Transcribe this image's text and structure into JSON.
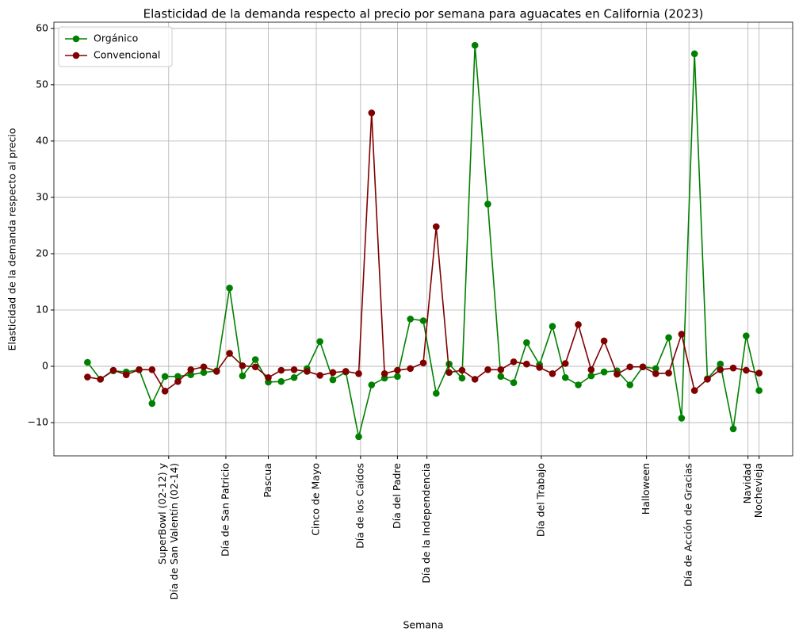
{
  "chart_data": {
    "type": "line",
    "title": "Elasticidad de la demanda respecto al precio por semana para aguacates en California (2023)",
    "xlabel": "Semana",
    "ylabel": "Elasticidad de la demanda respecto al precio",
    "x": [
      1,
      8,
      15,
      22,
      29,
      36,
      43,
      50,
      57,
      64,
      71,
      78,
      85,
      92,
      99,
      106,
      113,
      120,
      127,
      134,
      141,
      148,
      155,
      162,
      169,
      176,
      183,
      190,
      197,
      204,
      211,
      218,
      225,
      232,
      239,
      246,
      253,
      260,
      267,
      274,
      281,
      288,
      295,
      302,
      309,
      316,
      323,
      330,
      337,
      344,
      351,
      358,
      365
    ],
    "series": [
      {
        "name": "Orgánico",
        "color": "#008000",
        "values": [
          0.7,
          -2.3,
          -0.8,
          -1.0,
          -0.6,
          -6.6,
          -1.8,
          -1.8,
          -1.5,
          -1.1,
          -0.8,
          13.9,
          -1.7,
          1.2,
          -2.8,
          -2.7,
          -2.0,
          -0.4,
          4.4,
          -2.4,
          -1.0,
          -12.5,
          -3.3,
          -2.1,
          -1.8,
          8.4,
          8.1,
          -4.8,
          0.4,
          -2.1,
          57.0,
          28.8,
          -1.8,
          -2.9,
          4.2,
          0.3,
          7.1,
          -2.0,
          -3.3,
          -1.7,
          -1.0,
          -0.8,
          -3.3,
          -0.1,
          -0.4,
          5.1,
          -9.2,
          55.5,
          -2.2,
          0.4,
          -11.1,
          5.4,
          -4.3
        ]
      },
      {
        "name": "Convencional",
        "color": "#800000",
        "values": [
          -1.9,
          -2.3,
          -0.7,
          -1.5,
          -0.6,
          -0.6,
          -4.4,
          -2.7,
          -0.6,
          -0.1,
          -0.9,
          2.3,
          0.1,
          -0.1,
          -2.0,
          -0.7,
          -0.6,
          -0.9,
          -1.6,
          -1.1,
          -0.9,
          -1.3,
          45.0,
          -1.3,
          -0.7,
          -0.4,
          0.6,
          24.8,
          -1.1,
          -0.7,
          -2.3,
          -0.6,
          -0.6,
          0.8,
          0.4,
          -0.2,
          -1.3,
          0.5,
          7.4,
          -0.6,
          4.5,
          -1.4,
          -0.1,
          -0.1,
          -1.3,
          -1.2,
          5.7,
          -4.3,
          -2.3,
          -0.6,
          -0.3,
          -0.7,
          -1.2
        ]
      }
    ],
    "xlim": [
      -17.2,
      383.2
    ],
    "ylim": [
      -15.9,
      61.1
    ],
    "xticks": [
      {
        "value": 45,
        "label": "SuperBowl (02-12) y\nDía de San Valentín (02-14)"
      },
      {
        "value": 76,
        "label": "Día de San Patricio"
      },
      {
        "value": 99,
        "label": "Pascua"
      },
      {
        "value": 125,
        "label": "Cinco de Mayo"
      },
      {
        "value": 149,
        "label": "Día de los Caídos"
      },
      {
        "value": 169,
        "label": "Día del Padre"
      },
      {
        "value": 185,
        "label": "Día de la Independencia"
      },
      {
        "value": 247,
        "label": "Día del Trabajo"
      },
      {
        "value": 304,
        "label": "Halloween"
      },
      {
        "value": 327,
        "label": "Día de Acción de Gracias"
      },
      {
        "value": 359,
        "label": "Navidad"
      },
      {
        "value": 365,
        "label": "Nochevieja"
      }
    ],
    "yticks": [
      {
        "value": -10,
        "label": "−10"
      },
      0,
      10,
      20,
      30,
      40,
      50,
      60
    ],
    "grid": true,
    "legend": "upper left"
  }
}
